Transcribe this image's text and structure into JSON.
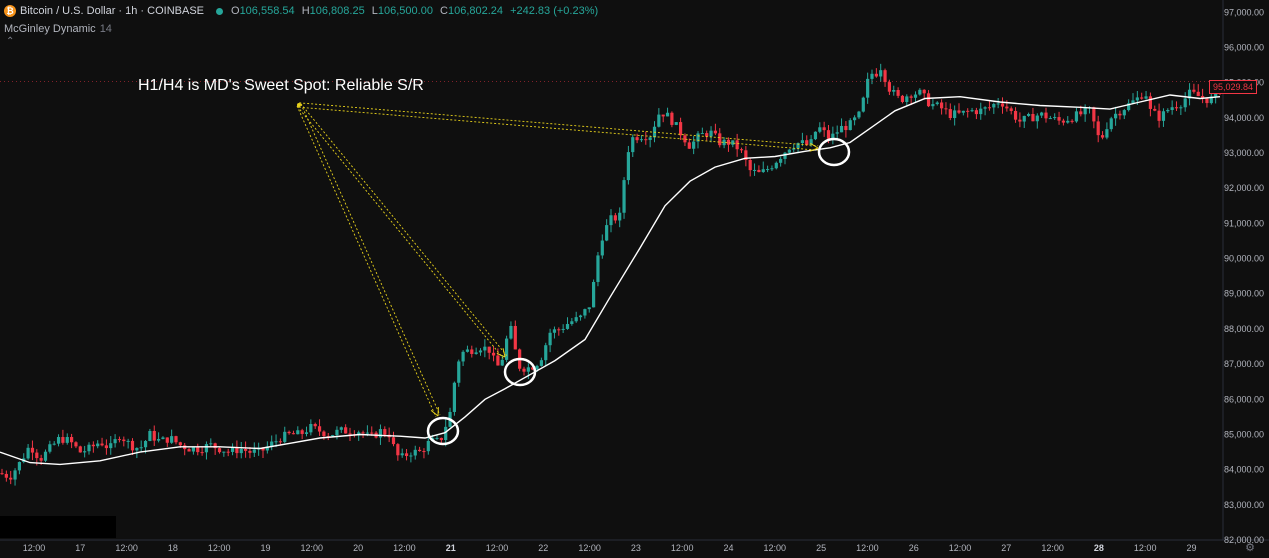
{
  "header": {
    "symbol": "Bitcoin / U.S. Dollar · 1h · COINBASE",
    "open_label": "O",
    "open": "106,558.54",
    "high_label": "H",
    "high": "106,808.25",
    "low_label": "L",
    "low": "106,500.00",
    "close_label": "C",
    "close": "106,802.24",
    "change": "+242.83 (+0.23%)",
    "indicator_name": "McGinley Dynamic",
    "indicator_period": "14",
    "btc_icon": "bitcoin-icon",
    "collapse_icon": "chevron-up-icon"
  },
  "annotation": "H1/H4 is MD's Sweet Spot: Reliable S/R",
  "last_price": "95,029.84",
  "colors": {
    "bull": "#26a69a",
    "bear": "#f23645",
    "md_line": "#ffffff",
    "arrows": "#e8d21c",
    "background": "#0f0f0f"
  },
  "chart_data": {
    "type": "candlestick",
    "y_ticks": [
      "82,000.00",
      "83,000.00",
      "84,000.00",
      "85,000.00",
      "86,000.00",
      "87,000.00",
      "88,000.00",
      "89,000.00",
      "90,000.00",
      "91,000.00",
      "92,000.00",
      "93,000.00",
      "94,000.00",
      "95,000.00",
      "96,000.00",
      "97,000.00"
    ],
    "y_range": [
      82000,
      97350
    ],
    "x_ticks": [
      "12:00",
      "17",
      "12:00",
      "18",
      "12:00",
      "19",
      "12:00",
      "20",
      "12:00",
      "21",
      "12:00",
      "22",
      "12:00",
      "23",
      "12:00",
      "24",
      "12:00",
      "25",
      "12:00",
      "26",
      "12:00",
      "27",
      "12:00",
      "28",
      "12:00",
      "29"
    ],
    "x_bold": [
      "21",
      "28"
    ],
    "price_path": [
      [
        0,
        83900
      ],
      [
        10,
        83800
      ],
      [
        20,
        84200
      ],
      [
        30,
        84700
      ],
      [
        40,
        84300
      ],
      [
        50,
        84600
      ],
      [
        60,
        84900
      ],
      [
        70,
        84800
      ],
      [
        80,
        84500
      ],
      [
        90,
        84600
      ],
      [
        100,
        84800
      ],
      [
        110,
        84600
      ],
      [
        120,
        85000
      ],
      [
        130,
        84700
      ],
      [
        140,
        84600
      ],
      [
        150,
        85000
      ],
      [
        160,
        84800
      ],
      [
        170,
        84900
      ],
      [
        180,
        84700
      ],
      [
        190,
        84600
      ],
      [
        200,
        84600
      ],
      [
        210,
        84700
      ],
      [
        220,
        84600
      ],
      [
        230,
        84500
      ],
      [
        240,
        84600
      ],
      [
        250,
        84500
      ],
      [
        260,
        84500
      ],
      [
        270,
        84700
      ],
      [
        280,
        84900
      ],
      [
        290,
        85000
      ],
      [
        300,
        85000
      ],
      [
        310,
        85200
      ],
      [
        320,
        85100
      ],
      [
        330,
        85000
      ],
      [
        340,
        85100
      ],
      [
        350,
        85100
      ],
      [
        360,
        85100
      ],
      [
        370,
        84900
      ],
      [
        380,
        85100
      ],
      [
        390,
        85000
      ],
      [
        395,
        84500
      ],
      [
        400,
        84300
      ],
      [
        410,
        84500
      ],
      [
        420,
        84500
      ],
      [
        430,
        84800
      ],
      [
        440,
        84800
      ],
      [
        450,
        85600
      ],
      [
        455,
        86600
      ],
      [
        460,
        87300
      ],
      [
        470,
        87400
      ],
      [
        480,
        87500
      ],
      [
        490,
        87400
      ],
      [
        495,
        87000
      ],
      [
        500,
        86900
      ],
      [
        505,
        87500
      ],
      [
        510,
        88100
      ],
      [
        515,
        87400
      ],
      [
        520,
        86900
      ],
      [
        530,
        86900
      ],
      [
        540,
        87100
      ],
      [
        550,
        87900
      ],
      [
        560,
        88000
      ],
      [
        570,
        88200
      ],
      [
        580,
        88300
      ],
      [
        590,
        88700
      ],
      [
        595,
        89500
      ],
      [
        600,
        90500
      ],
      [
        610,
        91100
      ],
      [
        620,
        91200
      ],
      [
        625,
        92500
      ],
      [
        630,
        93400
      ],
      [
        640,
        93500
      ],
      [
        650,
        93500
      ],
      [
        660,
        94200
      ],
      [
        670,
        94000
      ],
      [
        680,
        93600
      ],
      [
        690,
        93200
      ],
      [
        700,
        93500
      ],
      [
        710,
        93600
      ],
      [
        720,
        93300
      ],
      [
        730,
        93300
      ],
      [
        740,
        93100
      ],
      [
        750,
        92500
      ],
      [
        760,
        92400
      ],
      [
        770,
        92600
      ],
      [
        780,
        92900
      ],
      [
        790,
        93200
      ],
      [
        800,
        93300
      ],
      [
        810,
        93200
      ],
      [
        815,
        93600
      ],
      [
        820,
        93700
      ],
      [
        830,
        93400
      ],
      [
        840,
        93700
      ],
      [
        850,
        93800
      ],
      [
        860,
        94100
      ],
      [
        870,
        95300
      ],
      [
        875,
        95200
      ],
      [
        880,
        95500
      ],
      [
        890,
        94800
      ],
      [
        900,
        94500
      ],
      [
        910,
        94700
      ],
      [
        920,
        94700
      ],
      [
        930,
        94400
      ],
      [
        940,
        94300
      ],
      [
        950,
        94100
      ],
      [
        960,
        94100
      ],
      [
        970,
        94200
      ],
      [
        980,
        94200
      ],
      [
        990,
        94300
      ],
      [
        1000,
        94500
      ],
      [
        1010,
        94200
      ],
      [
        1020,
        93900
      ],
      [
        1030,
        94000
      ],
      [
        1040,
        94100
      ],
      [
        1050,
        94000
      ],
      [
        1060,
        93900
      ],
      [
        1070,
        94000
      ],
      [
        1080,
        94100
      ],
      [
        1090,
        94200
      ],
      [
        1100,
        93300
      ],
      [
        1110,
        94000
      ],
      [
        1120,
        94200
      ],
      [
        1130,
        94400
      ],
      [
        1140,
        94600
      ],
      [
        1145,
        94800
      ],
      [
        1150,
        94200
      ],
      [
        1160,
        94000
      ],
      [
        1170,
        94300
      ],
      [
        1180,
        94400
      ],
      [
        1190,
        94700
      ],
      [
        1200,
        94600
      ],
      [
        1210,
        94500
      ],
      [
        1220,
        94800
      ]
    ],
    "md_path": [
      [
        0,
        84500
      ],
      [
        30,
        84200
      ],
      [
        60,
        84150
      ],
      [
        100,
        84250
      ],
      [
        140,
        84500
      ],
      [
        180,
        84650
      ],
      [
        220,
        84650
      ],
      [
        260,
        84600
      ],
      [
        290,
        84750
      ],
      [
        320,
        84900
      ],
      [
        360,
        85000
      ],
      [
        400,
        84950
      ],
      [
        425,
        84900
      ],
      [
        445,
        85050
      ],
      [
        465,
        85500
      ],
      [
        485,
        86000
      ],
      [
        505,
        86300
      ],
      [
        530,
        86700
      ],
      [
        555,
        87100
      ],
      [
        585,
        87700
      ],
      [
        610,
        88900
      ],
      [
        640,
        90300
      ],
      [
        665,
        91500
      ],
      [
        690,
        92200
      ],
      [
        715,
        92600
      ],
      [
        745,
        92850
      ],
      [
        775,
        92900
      ],
      [
        805,
        93050
      ],
      [
        830,
        93150
      ],
      [
        850,
        93300
      ],
      [
        870,
        93700
      ],
      [
        895,
        94200
      ],
      [
        925,
        94550
      ],
      [
        960,
        94600
      ],
      [
        1000,
        94450
      ],
      [
        1040,
        94350
      ],
      [
        1080,
        94300
      ],
      [
        1110,
        94250
      ],
      [
        1140,
        94450
      ],
      [
        1170,
        94650
      ],
      [
        1200,
        94550
      ],
      [
        1220,
        94600
      ]
    ],
    "circles": [
      [
        443,
        431
      ],
      [
        520,
        372
      ],
      [
        834,
        152
      ]
    ],
    "arrow_source": [
      299,
      105
    ]
  }
}
